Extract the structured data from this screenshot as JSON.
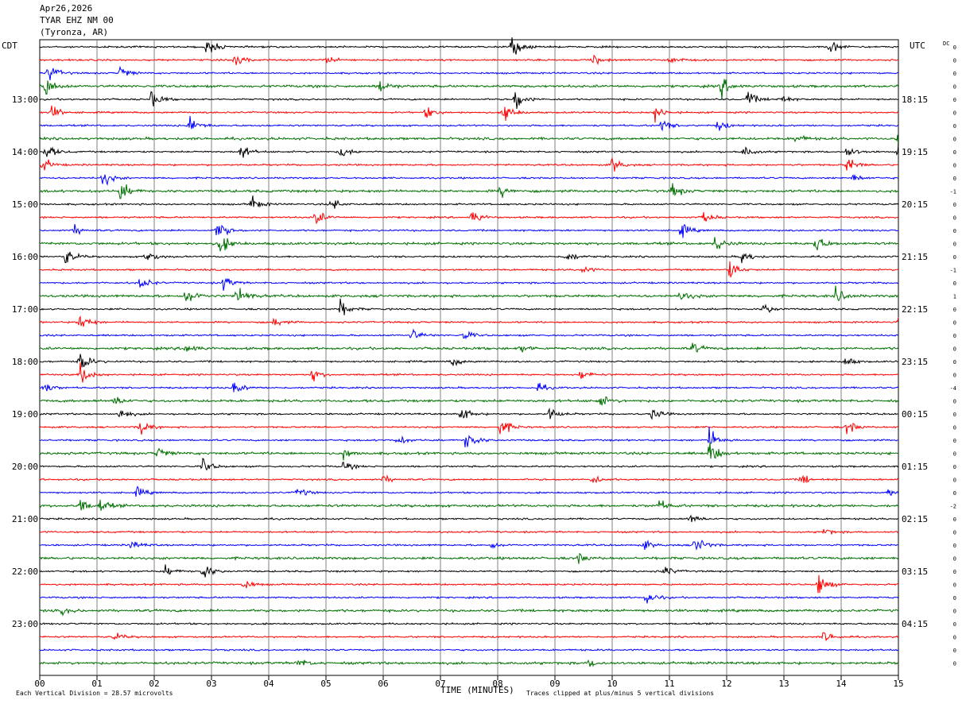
{
  "header": {
    "date": "Apr26,2026",
    "station": "TYAR EHZ NM 00",
    "location": "(Tyronza, AR)"
  },
  "left_timezone": "CDT",
  "right_timezone": "UTC",
  "dc_label": "DC",
  "footer": {
    "scale": "Each Vertical Division =   28.57 microvolts",
    "xlabel": "TIME (MINUTES)",
    "clip_note": "Traces clipped at plus/minus 5 vertical divisions"
  },
  "colors": {
    "trace_cycle": [
      "#000000",
      "#ff0000",
      "#0000ff",
      "#007000"
    ],
    "grid": "#808080"
  },
  "chart_data": {
    "type": "line",
    "title": "",
    "xlabel": "TIME (MINUTES)",
    "x_ticks": [
      "00",
      "01",
      "02",
      "03",
      "04",
      "05",
      "06",
      "07",
      "08",
      "09",
      "10",
      "11",
      "12",
      "13",
      "14",
      "15"
    ],
    "xlim": [
      0,
      15
    ],
    "trace_count": 48,
    "left_time_labels": [
      "13:00",
      "14:00",
      "15:00",
      "16:00",
      "17:00",
      "18:00",
      "19:00",
      "20:00",
      "21:00",
      "22:00",
      "23:00"
    ],
    "right_time_labels": [
      "18:15",
      "19:15",
      "20:15",
      "21:15",
      "22:15",
      "23:15",
      "00:15",
      "01:15",
      "02:15",
      "03:15",
      "04:15"
    ],
    "dc_offsets": [
      "0",
      "0",
      "0",
      "0",
      "0",
      "0",
      "0",
      "0",
      "0",
      "0",
      "0",
      "-1",
      "0",
      "0",
      "0",
      "0",
      "0",
      "-1",
      "0",
      "1",
      "0",
      "0",
      "0",
      "0",
      "0",
      "0",
      "-4",
      "0",
      "0",
      "0",
      "0",
      "0",
      "0",
      "0",
      "0",
      "-2",
      "0",
      "0",
      "0",
      "0",
      "0",
      "0",
      "0",
      "0",
      "0",
      "0",
      "0",
      "0"
    ],
    "events": [
      {
        "trace": 0,
        "minute": 2.9,
        "amp": 2.2
      },
      {
        "trace": 0,
        "minute": 8.25,
        "amp": 2.5
      },
      {
        "trace": 0,
        "minute": 13.8,
        "amp": 1.5
      },
      {
        "trace": 1,
        "minute": 5.0,
        "amp": 0.9
      },
      {
        "trace": 1,
        "minute": 3.4,
        "amp": 1.3
      },
      {
        "trace": 1,
        "minute": 9.65,
        "amp": 1.2
      },
      {
        "trace": 1,
        "minute": 11.0,
        "amp": 1.0
      },
      {
        "trace": 2,
        "minute": 0.15,
        "amp": 2.0
      },
      {
        "trace": 2,
        "minute": 1.4,
        "amp": 1.5
      },
      {
        "trace": 3,
        "minute": 0.1,
        "amp": 2.3
      },
      {
        "trace": 3,
        "minute": 5.95,
        "amp": 1.4
      },
      {
        "trace": 3,
        "minute": 11.9,
        "amp": 2.0
      },
      {
        "trace": 4,
        "minute": 1.95,
        "amp": 1.8
      },
      {
        "trace": 4,
        "minute": 8.3,
        "amp": 2.5
      },
      {
        "trace": 4,
        "minute": 12.35,
        "amp": 1.8
      },
      {
        "trace": 4,
        "minute": 12.9,
        "amp": 1.2
      },
      {
        "trace": 5,
        "minute": 0.2,
        "amp": 1.4
      },
      {
        "trace": 5,
        "minute": 6.75,
        "amp": 1.2
      },
      {
        "trace": 5,
        "minute": 8.1,
        "amp": 2.5
      },
      {
        "trace": 5,
        "minute": 10.75,
        "amp": 1.6
      },
      {
        "trace": 6,
        "minute": 2.6,
        "amp": 2.3
      },
      {
        "trace": 6,
        "minute": 10.85,
        "amp": 1.4
      },
      {
        "trace": 6,
        "minute": 11.85,
        "amp": 1.1
      },
      {
        "trace": 7,
        "minute": 13.2,
        "amp": 0.9
      },
      {
        "trace": 7,
        "minute": 15.0,
        "amp": 1.5
      },
      {
        "trace": 8,
        "minute": 0.1,
        "amp": 1.8
      },
      {
        "trace": 8,
        "minute": 3.5,
        "amp": 1.6
      },
      {
        "trace": 8,
        "minute": 5.25,
        "amp": 1.4
      },
      {
        "trace": 8,
        "minute": 12.3,
        "amp": 1.2
      },
      {
        "trace": 8,
        "minute": 14.1,
        "amp": 1.2
      },
      {
        "trace": 8,
        "minute": 15.0,
        "amp": 1.5
      },
      {
        "trace": 9,
        "minute": 0.05,
        "amp": 1.5
      },
      {
        "trace": 9,
        "minute": 10.0,
        "amp": 1.6
      },
      {
        "trace": 9,
        "minute": 14.1,
        "amp": 1.8
      },
      {
        "trace": 10,
        "minute": 1.1,
        "amp": 1.8
      },
      {
        "trace": 10,
        "minute": 14.2,
        "amp": 0.8
      },
      {
        "trace": 11,
        "minute": 1.4,
        "amp": 2.0
      },
      {
        "trace": 11,
        "minute": 8.05,
        "amp": 1.2
      },
      {
        "trace": 11,
        "minute": 11.05,
        "amp": 1.5
      },
      {
        "trace": 12,
        "minute": 3.7,
        "amp": 1.6
      },
      {
        "trace": 12,
        "minute": 5.1,
        "amp": 1.2
      },
      {
        "trace": 13,
        "minute": 4.8,
        "amp": 1.8
      },
      {
        "trace": 13,
        "minute": 7.55,
        "amp": 1.6
      },
      {
        "trace": 13,
        "minute": 11.6,
        "amp": 1.4
      },
      {
        "trace": 14,
        "minute": 3.1,
        "amp": 2.4
      },
      {
        "trace": 14,
        "minute": 11.2,
        "amp": 1.5
      },
      {
        "trace": 14,
        "minute": 0.6,
        "amp": 1.0
      },
      {
        "trace": 15,
        "minute": 3.15,
        "amp": 2.2
      },
      {
        "trace": 15,
        "minute": 11.8,
        "amp": 1.8
      },
      {
        "trace": 15,
        "minute": 13.55,
        "amp": 2.0
      },
      {
        "trace": 16,
        "minute": 0.45,
        "amp": 1.8
      },
      {
        "trace": 16,
        "minute": 1.85,
        "amp": 1.5
      },
      {
        "trace": 16,
        "minute": 9.2,
        "amp": 1.4
      },
      {
        "trace": 16,
        "minute": 12.25,
        "amp": 1.8
      },
      {
        "trace": 17,
        "minute": 9.45,
        "amp": 1.2
      },
      {
        "trace": 17,
        "minute": 12.05,
        "amp": 2.0
      },
      {
        "trace": 18,
        "minute": 1.75,
        "amp": 1.4
      },
      {
        "trace": 18,
        "minute": 3.2,
        "amp": 1.6
      },
      {
        "trace": 19,
        "minute": 2.55,
        "amp": 2.2
      },
      {
        "trace": 19,
        "minute": 3.45,
        "amp": 2.2
      },
      {
        "trace": 19,
        "minute": 11.2,
        "amp": 1.3
      },
      {
        "trace": 19,
        "minute": 13.9,
        "amp": 1.6
      },
      {
        "trace": 20,
        "minute": 5.25,
        "amp": 1.8
      },
      {
        "trace": 20,
        "minute": 12.65,
        "amp": 1.2
      },
      {
        "trace": 21,
        "minute": 0.7,
        "amp": 2.0
      },
      {
        "trace": 21,
        "minute": 4.1,
        "amp": 1.0
      },
      {
        "trace": 21,
        "minute": 15.0,
        "amp": 1.0
      },
      {
        "trace": 22,
        "minute": 6.5,
        "amp": 1.4
      },
      {
        "trace": 22,
        "minute": 7.4,
        "amp": 1.2
      },
      {
        "trace": 23,
        "minute": 2.55,
        "amp": 1.2
      },
      {
        "trace": 23,
        "minute": 8.4,
        "amp": 1.0
      },
      {
        "trace": 23,
        "minute": 11.4,
        "amp": 1.0
      },
      {
        "trace": 24,
        "minute": 0.7,
        "amp": 2.5
      },
      {
        "trace": 24,
        "minute": 7.2,
        "amp": 1.0
      },
      {
        "trace": 24,
        "minute": 14.05,
        "amp": 1.2
      },
      {
        "trace": 25,
        "minute": 0.7,
        "amp": 2.5
      },
      {
        "trace": 25,
        "minute": 4.75,
        "amp": 1.4
      },
      {
        "trace": 25,
        "minute": 9.45,
        "amp": 1.0
      },
      {
        "trace": 26,
        "minute": 0.05,
        "amp": 1.3
      },
      {
        "trace": 26,
        "minute": 3.4,
        "amp": 1.4
      },
      {
        "trace": 26,
        "minute": 8.7,
        "amp": 0.9
      },
      {
        "trace": 27,
        "minute": 1.3,
        "amp": 1.1
      },
      {
        "trace": 27,
        "minute": 9.75,
        "amp": 1.6
      },
      {
        "trace": 28,
        "minute": 1.4,
        "amp": 1.2
      },
      {
        "trace": 28,
        "minute": 7.35,
        "amp": 1.8
      },
      {
        "trace": 28,
        "minute": 8.9,
        "amp": 1.4
      },
      {
        "trace": 28,
        "minute": 10.7,
        "amp": 1.2
      },
      {
        "trace": 29,
        "minute": 1.75,
        "amp": 1.8
      },
      {
        "trace": 29,
        "minute": 8.05,
        "amp": 2.0
      },
      {
        "trace": 29,
        "minute": 14.1,
        "amp": 1.6
      },
      {
        "trace": 30,
        "minute": 7.45,
        "amp": 2.5
      },
      {
        "trace": 30,
        "minute": 11.7,
        "amp": 2.5
      },
      {
        "trace": 30,
        "minute": 6.25,
        "amp": 1.0
      },
      {
        "trace": 31,
        "minute": 2.05,
        "amp": 1.4
      },
      {
        "trace": 31,
        "minute": 5.3,
        "amp": 1.0
      },
      {
        "trace": 31,
        "minute": 11.7,
        "amp": 2.3
      },
      {
        "trace": 32,
        "minute": 2.85,
        "amp": 1.6
      },
      {
        "trace": 32,
        "minute": 5.3,
        "amp": 1.0
      },
      {
        "trace": 33,
        "minute": 6.0,
        "amp": 0.8
      },
      {
        "trace": 33,
        "minute": 9.65,
        "amp": 1.0
      },
      {
        "trace": 33,
        "minute": 13.3,
        "amp": 1.2
      },
      {
        "trace": 34,
        "minute": 1.7,
        "amp": 1.0
      },
      {
        "trace": 34,
        "minute": 4.5,
        "amp": 1.2
      },
      {
        "trace": 34,
        "minute": 14.8,
        "amp": 1.0
      },
      {
        "trace": 35,
        "minute": 0.7,
        "amp": 1.4
      },
      {
        "trace": 35,
        "minute": 1.05,
        "amp": 1.3
      },
      {
        "trace": 35,
        "minute": 10.8,
        "amp": 1.2
      },
      {
        "trace": 36,
        "minute": 11.35,
        "amp": 1.2
      },
      {
        "trace": 37,
        "minute": 13.7,
        "amp": 0.8
      },
      {
        "trace": 38,
        "minute": 1.6,
        "amp": 1.0
      },
      {
        "trace": 38,
        "minute": 7.9,
        "amp": 0.8
      },
      {
        "trace": 38,
        "minute": 10.55,
        "amp": 1.0
      },
      {
        "trace": 38,
        "minute": 11.45,
        "amp": 2.4
      },
      {
        "trace": 39,
        "minute": 9.4,
        "amp": 1.0
      },
      {
        "trace": 40,
        "minute": 2.85,
        "amp": 1.8
      },
      {
        "trace": 40,
        "minute": 10.9,
        "amp": 1.2
      },
      {
        "trace": 40,
        "minute": 2.2,
        "amp": 1.0
      },
      {
        "trace": 41,
        "minute": 3.55,
        "amp": 1.2
      },
      {
        "trace": 41,
        "minute": 13.6,
        "amp": 2.5
      },
      {
        "trace": 42,
        "minute": 10.6,
        "amp": 1.6
      },
      {
        "trace": 43,
        "minute": 0.4,
        "amp": 0.6
      },
      {
        "trace": 45,
        "minute": 1.3,
        "amp": 0.8
      },
      {
        "trace": 45,
        "minute": 13.7,
        "amp": 1.4
      },
      {
        "trace": 47,
        "minute": 4.5,
        "amp": 1.0
      },
      {
        "trace": 47,
        "minute": 9.6,
        "amp": 0.8
      }
    ]
  }
}
